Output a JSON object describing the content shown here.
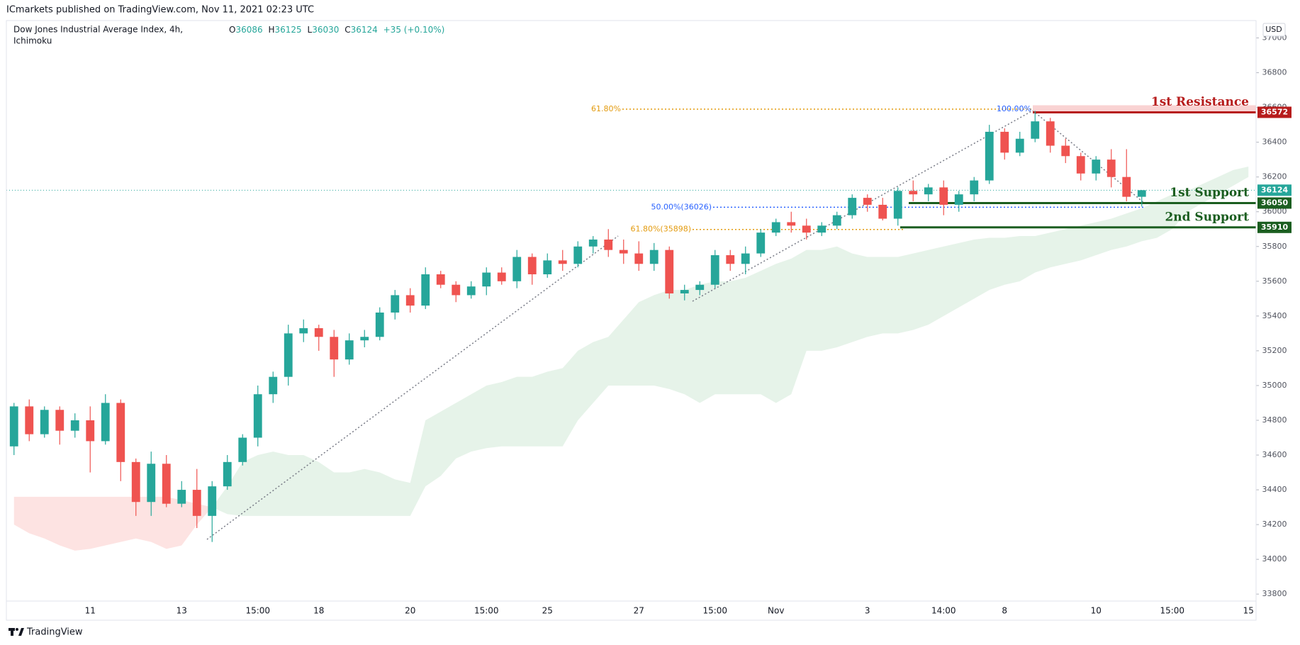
{
  "chart_data": {
    "type": "candlestick",
    "publisher": "ICmarkets published on TradingView.com, Nov 11, 2021 02:23 UTC",
    "title": "Dow Jones Industrial Average Index, 4h,",
    "indicator": "Ichimoku",
    "ohlc_letters": [
      "O",
      "H",
      "L",
      "C"
    ],
    "change": "+35 (+0.10%)",
    "currency": "USD",
    "footer": "TradingView",
    "up_color": "#26a69a",
    "down_color": "#ef5350",
    "categories": [
      null,
      null,
      null,
      null,
      null,
      "11",
      null,
      null,
      null,
      null,
      null,
      "13",
      null,
      null,
      null,
      null,
      "15:00",
      null,
      null,
      null,
      "18",
      null,
      null,
      null,
      null,
      null,
      "20",
      null,
      null,
      null,
      null,
      "15:00",
      null,
      null,
      null,
      "25",
      null,
      null,
      null,
      null,
      null,
      "27",
      null,
      null,
      null,
      null,
      "15:00",
      null,
      null,
      null,
      "Nov",
      null,
      null,
      null,
      null,
      null,
      "3",
      null,
      null,
      null,
      null,
      "14:00",
      null,
      null,
      null,
      "8",
      null,
      null,
      null,
      null,
      null,
      "10",
      null,
      null,
      null,
      null,
      "15:00",
      null,
      null,
      null,
      null,
      "15"
    ],
    "open": [
      34650,
      34880,
      34720,
      34860,
      34740,
      34800,
      34680,
      34900,
      34560,
      34330,
      34550,
      34320,
      34400,
      34250,
      34420,
      34560,
      34700,
      34950,
      35050,
      35300,
      35330,
      35280,
      35150,
      35260,
      35280,
      35420,
      35520,
      35460,
      35640,
      35580,
      35520,
      35570,
      35650,
      35600,
      35740,
      35640,
      35720,
      35700,
      35800,
      35840,
      35780,
      35760,
      35700,
      35780,
      35530,
      35550,
      35580,
      35750,
      35700,
      35760,
      35880,
      35940,
      35920,
      35880,
      35920,
      35980,
      36080,
      36040,
      35960,
      36120,
      36100,
      36140,
      36040,
      36100,
      36180,
      36460,
      36340,
      36420,
      36520,
      36380,
      36320,
      36220,
      36300,
      36200,
      36086,
      null,
      null,
      null,
      null,
      null,
      null,
      null
    ],
    "high": [
      34900,
      34920,
      34880,
      34880,
      34840,
      34880,
      34950,
      34920,
      34580,
      34620,
      34600,
      34450,
      34520,
      34450,
      34600,
      34720,
      35000,
      35080,
      35350,
      35380,
      35350,
      35320,
      35300,
      35320,
      35450,
      35550,
      35560,
      35680,
      35660,
      35600,
      35600,
      35680,
      35680,
      35780,
      35760,
      35760,
      35780,
      35830,
      35860,
      35900,
      35840,
      35830,
      35820,
      35800,
      35580,
      35600,
      35780,
      35780,
      35800,
      35900,
      35960,
      36000,
      35960,
      35940,
      36000,
      36100,
      36100,
      36080,
      36140,
      36180,
      36160,
      36180,
      36120,
      36200,
      36500,
      36480,
      36460,
      36580,
      36540,
      36420,
      36340,
      36320,
      36360,
      36360,
      36125,
      null,
      null,
      null,
      null,
      null,
      null,
      null
    ],
    "low": [
      34600,
      34680,
      34700,
      34660,
      34700,
      34500,
      34660,
      34450,
      34250,
      34250,
      34300,
      34300,
      34180,
      34100,
      34400,
      34540,
      34650,
      34900,
      35000,
      35250,
      35200,
      35050,
      35120,
      35220,
      35260,
      35380,
      35420,
      35440,
      35560,
      35480,
      35500,
      35520,
      35580,
      35560,
      35580,
      35620,
      35660,
      35680,
      35760,
      35740,
      35700,
      35660,
      35660,
      35500,
      35490,
      35520,
      35560,
      35660,
      35640,
      35740,
      35860,
      35880,
      35840,
      35860,
      35900,
      35960,
      36000,
      35950,
      35920,
      36060,
      36060,
      35980,
      36000,
      36060,
      36160,
      36300,
      36320,
      36400,
      36340,
      36280,
      36180,
      36180,
      36140,
      36060,
      36030,
      null,
      null,
      null,
      null,
      null,
      null,
      null
    ],
    "close": [
      34880,
      34720,
      34860,
      34740,
      34800,
      34680,
      34900,
      34560,
      34330,
      34550,
      34320,
      34400,
      34250,
      34420,
      34560,
      34700,
      34950,
      35050,
      35300,
      35330,
      35280,
      35150,
      35260,
      35280,
      35420,
      35520,
      35460,
      35640,
      35580,
      35520,
      35570,
      35650,
      35600,
      35740,
      35640,
      35720,
      35700,
      35800,
      35840,
      35780,
      35760,
      35700,
      35780,
      35530,
      35550,
      35580,
      35750,
      35700,
      35760,
      35880,
      35940,
      35920,
      35880,
      35920,
      35980,
      36080,
      36040,
      35960,
      36120,
      36100,
      36140,
      36040,
      36100,
      36180,
      36460,
      36340,
      36420,
      36520,
      36380,
      36320,
      36220,
      36300,
      36200,
      36086,
      36124,
      null,
      null,
      null,
      null,
      null,
      null,
      null
    ],
    "cloud": [
      {
        "color": "#fde3e2",
        "upper": [
          34360,
          34360,
          34360,
          34360,
          34360,
          34360,
          34360,
          34360,
          34360,
          34360,
          34360,
          34340,
          34320,
          34300,
          null,
          null,
          null,
          null,
          null,
          null,
          null,
          null,
          null,
          null,
          null,
          null,
          null,
          null,
          null,
          null,
          null,
          null,
          null,
          null,
          null,
          null,
          null,
          null,
          null,
          null,
          null,
          null,
          null,
          null,
          null,
          null,
          null,
          null,
          null,
          null,
          null,
          null,
          null,
          null,
          null,
          null,
          null,
          null,
          null,
          null,
          null,
          null,
          null,
          null,
          null,
          null,
          null,
          null,
          null,
          null,
          null,
          null,
          null,
          null,
          null,
          null,
          null,
          null,
          null,
          null,
          null,
          null
        ],
        "lower": [
          34200,
          34150,
          34120,
          34080,
          34050,
          34060,
          34080,
          34100,
          34120,
          34100,
          34060,
          34080,
          34200,
          34300,
          null,
          null,
          null,
          null,
          null,
          null,
          null,
          null,
          null,
          null,
          null,
          null,
          null,
          null,
          null,
          null,
          null,
          null,
          null,
          null,
          null,
          null,
          null,
          null,
          null,
          null,
          null,
          null,
          null,
          null,
          null,
          null,
          null,
          null,
          null,
          null,
          null,
          null,
          null,
          null,
          null,
          null,
          null,
          null,
          null,
          null,
          null,
          null,
          null,
          null,
          null,
          null,
          null,
          null,
          null,
          null,
          null,
          null,
          null,
          null,
          null,
          null,
          null,
          null,
          null,
          null,
          null,
          null
        ]
      },
      {
        "color": "#e6f3e9",
        "upper": [
          null,
          null,
          null,
          null,
          null,
          null,
          null,
          null,
          null,
          null,
          null,
          null,
          null,
          34300,
          34420,
          34560,
          34600,
          34620,
          34600,
          34600,
          34560,
          34500,
          34500,
          34520,
          34500,
          34460,
          34440,
          34800,
          34850,
          34900,
          34950,
          35000,
          35020,
          35050,
          35050,
          35080,
          35100,
          35200,
          35250,
          35280,
          35380,
          35480,
          35520,
          35550,
          35550,
          35580,
          35600,
          35600,
          35620,
          35660,
          35700,
          35730,
          35780,
          35780,
          35800,
          35760,
          35740,
          35740,
          35740,
          35760,
          35780,
          35800,
          35820,
          35840,
          35850,
          35850,
          35860,
          35860,
          35880,
          35900,
          35920,
          35940,
          35960,
          35990,
          36020,
          36060,
          36100,
          36120,
          36160,
          36200,
          36240,
          36260
        ],
        "lower": [
          null,
          null,
          null,
          null,
          null,
          null,
          null,
          null,
          null,
          null,
          null,
          null,
          null,
          34300,
          34260,
          34250,
          34250,
          34250,
          34250,
          34250,
          34250,
          34250,
          34250,
          34250,
          34250,
          34250,
          34250,
          34420,
          34480,
          34580,
          34620,
          34640,
          34650,
          34650,
          34650,
          34650,
          34650,
          34800,
          34900,
          35000,
          35000,
          35000,
          35000,
          34980,
          34950,
          34900,
          34950,
          34950,
          34950,
          34950,
          34900,
          34950,
          35200,
          35200,
          35220,
          35250,
          35280,
          35300,
          35300,
          35320,
          35350,
          35400,
          35450,
          35500,
          35550,
          35580,
          35600,
          35650,
          35680,
          35700,
          35720,
          35750,
          35780,
          35800,
          35830,
          35850,
          35900,
          36000,
          36050,
          36100,
          36150,
          36200
        ]
      }
    ],
    "levels": [
      {
        "label": "1st Resistance",
        "value": 36572,
        "color": "#b71c1c"
      },
      {
        "label": "1st Support",
        "value": 36050,
        "color": "#1b5e20"
      },
      {
        "label": "2nd Support",
        "value": 35910,
        "color": "#1b5e20"
      }
    ],
    "fib_levels": [
      {
        "label": "61.80%",
        "value": 36590,
        "color": "#e39b0f"
      },
      {
        "label": "100.00%",
        "value": 36590,
        "color": "#2962ff"
      },
      {
        "label": "50.00%(36026)",
        "value": 36026,
        "color": "#2962ff"
      },
      {
        "label": "61.80%(35898)",
        "value": 35898,
        "color": "#e39b0f"
      }
    ],
    "ylim": [
      33760,
      37100
    ],
    "yticks": [
      33800,
      34000,
      34200,
      34400,
      34600,
      34800,
      35000,
      35200,
      35400,
      35600,
      35800,
      36000,
      36200,
      36400,
      36600,
      36800,
      37000
    ]
  }
}
